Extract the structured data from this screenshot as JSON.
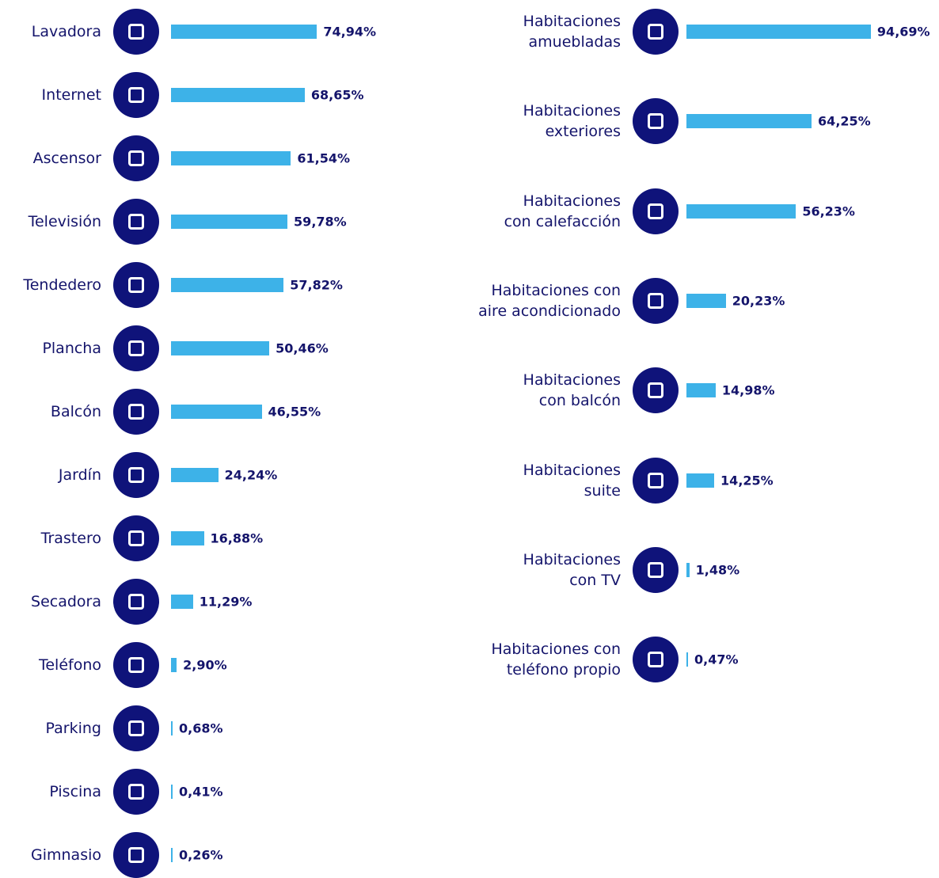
{
  "chart_data": [
    {
      "type": "bar",
      "orientation": "horizontal",
      "color": "#3db2e8",
      "categories": [
        "Lavadora",
        "Internet",
        "Ascensor",
        "Televisión",
        "Tendedero",
        "Plancha",
        "Balcón",
        "Jardín",
        "Trastero",
        "Secadora",
        "Teléfono",
        "Parking",
        "Piscina",
        "Gimnasio"
      ],
      "values": [
        74.94,
        68.65,
        61.54,
        59.78,
        57.82,
        50.46,
        46.55,
        24.24,
        16.88,
        11.29,
        2.9,
        0.68,
        0.41,
        0.26
      ],
      "value_labels": [
        "74,94%",
        "68,65%",
        "61,54%",
        "59,78%",
        "57,82%",
        "50,46%",
        "46,55%",
        "24,24%",
        "16,88%",
        "11,29%",
        "2,90%",
        "0,68%",
        "0,41%",
        "0,26%"
      ]
    },
    {
      "type": "bar",
      "orientation": "horizontal",
      "color": "#3db2e8",
      "categories": [
        "Habitaciones\namuebladas",
        "Habitaciones\nexteriores",
        "Habitaciones\ncon calefacción",
        "Habitaciones con\naire acondicionado",
        "Habitaciones\ncon balcón",
        "Habitaciones\nsuite",
        "Habitaciones\ncon TV",
        "Habitaciones con\nteléfono propio"
      ],
      "values": [
        94.69,
        64.25,
        56.23,
        20.23,
        14.98,
        14.25,
        1.48,
        0.47
      ],
      "value_labels": [
        "94,69%",
        "64,25%",
        "56,23%",
        "20,23%",
        "14,98%",
        "14,25%",
        "1,48%",
        "0,47%"
      ]
    }
  ]
}
